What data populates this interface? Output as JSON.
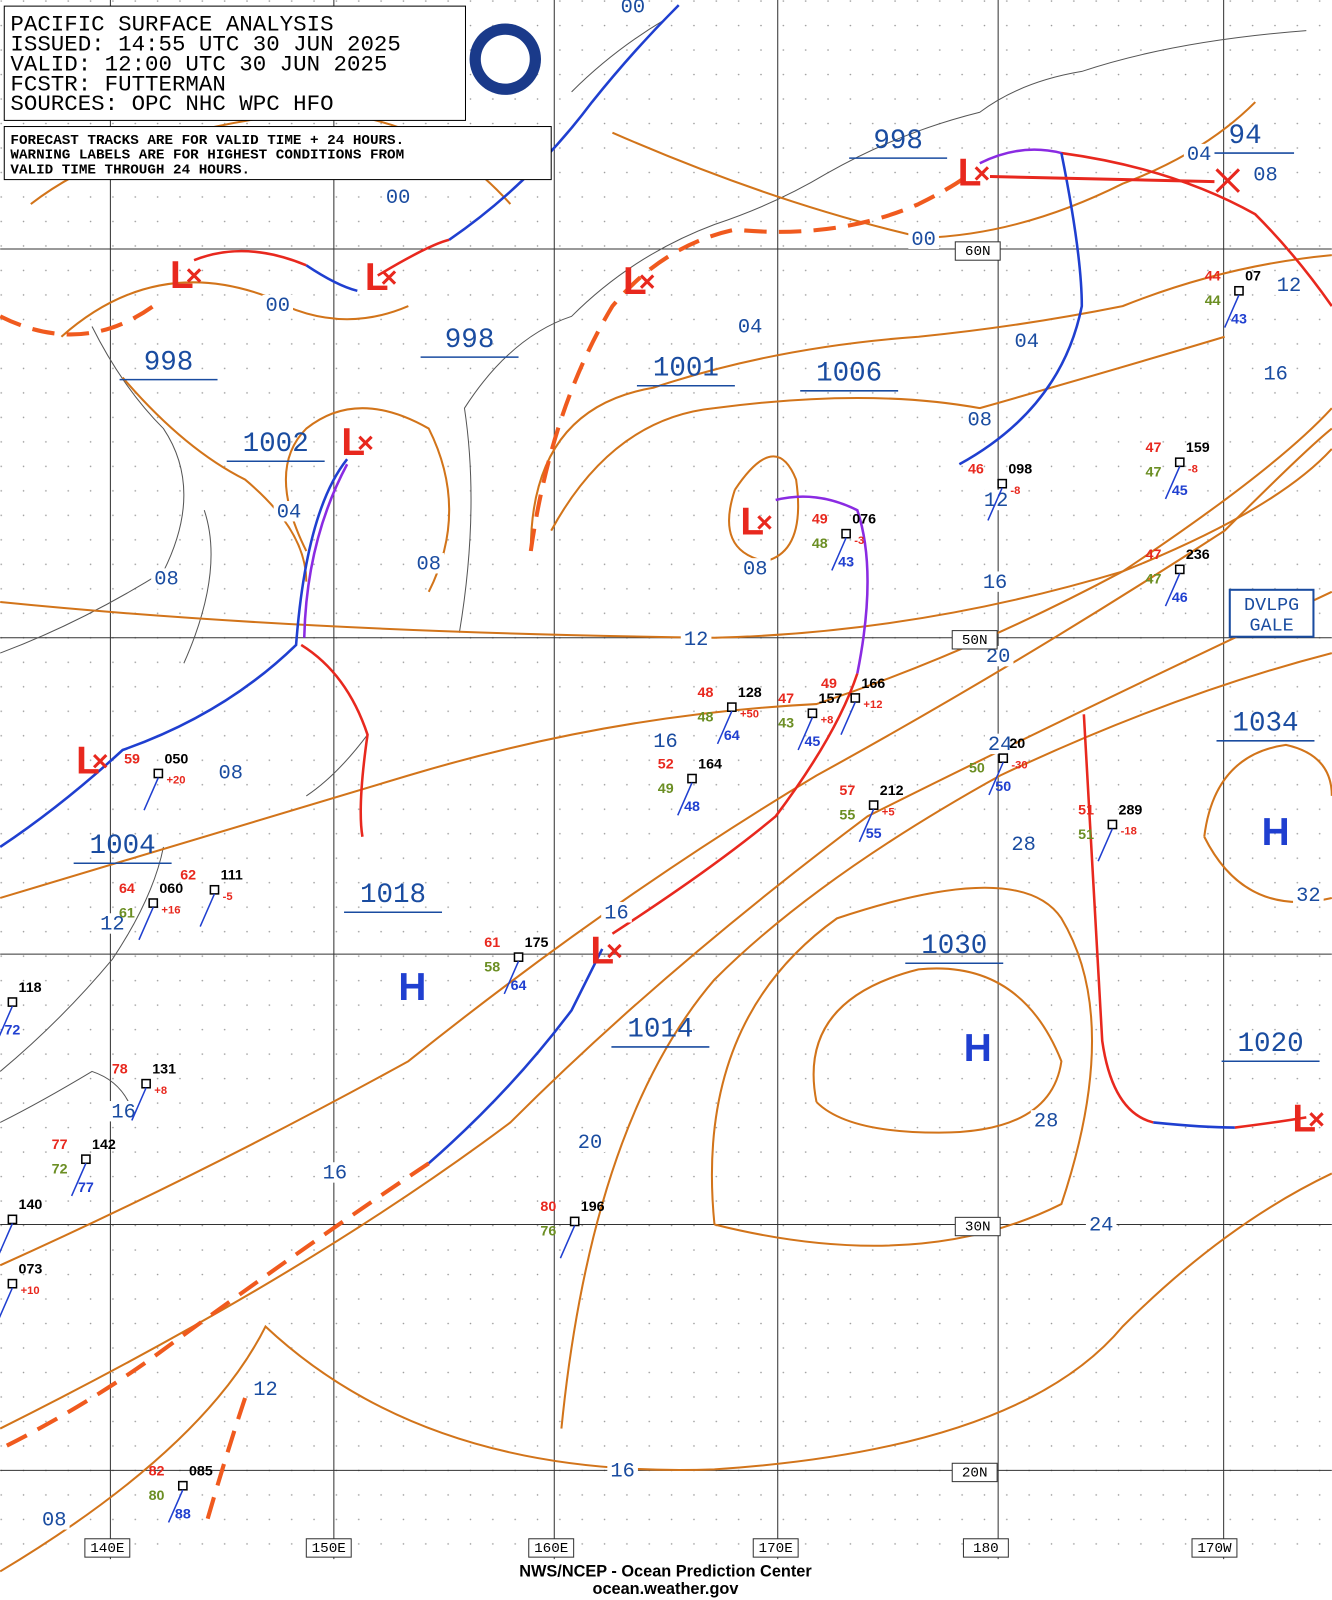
{
  "header": {
    "lines": [
      "PACIFIC SURFACE ANALYSIS",
      "ISSUED: 14:55 UTC 30 JUN 2025",
      "VALID:  12:00 UTC 30 JUN 2025",
      "FCSTR:  FUTTERMAN",
      "SOURCES: OPC NHC WPC HFO"
    ],
    "notes": [
      "FORECAST TRACKS ARE FOR VALID TIME + 24 HOURS.",
      "WARNING LABELS ARE FOR HIGHEST CONDITIONS FROM",
      "VALID TIME THROUGH 24 HOURS."
    ]
  },
  "symbols": {
    "low": "L",
    "high": "H"
  },
  "pressure_labels": [
    "998",
    "94",
    "998",
    "998",
    "1001",
    "1006",
    "1002",
    "1034",
    "1004",
    "1018",
    "1030",
    "1014",
    "1020"
  ],
  "isobar_labels": [
    "00",
    "00",
    "00",
    "00",
    "04",
    "04",
    "04",
    "08",
    "12",
    "16",
    "08",
    "12",
    "04",
    "08",
    "08",
    "08",
    "16",
    "20",
    "12",
    "16",
    "08",
    "24",
    "28",
    "32",
    "12",
    "16",
    "16",
    "20",
    "28",
    "16",
    "24",
    "12",
    "16",
    "08"
  ],
  "grid_labels": [
    "60N",
    "50N",
    "30N",
    "20N",
    "140E",
    "150E",
    "160E",
    "170E",
    "180",
    "170W"
  ],
  "warning": [
    "DVLPG",
    "GALE"
  ],
  "stations": [
    {
      "temp": "49",
      "pressure": "076",
      "tendency": "-3",
      "dew": "48",
      "sst": "43"
    },
    {
      "temp": "47",
      "pressure": "159",
      "tendency": "-8",
      "dew": "47",
      "sst": "45"
    },
    {
      "temp": "47",
      "pressure": "236",
      "dew": "47",
      "sst": "46"
    },
    {
      "temp": "44",
      "pressure": "07",
      "dew": "44",
      "sst": "43"
    },
    {
      "temp": "46",
      "pressure": "098",
      "tendency": "-8"
    },
    {
      "temp": "48",
      "pressure": "128",
      "tendency": "+50",
      "dew": "48",
      "sst": "64"
    },
    {
      "temp": "47",
      "pressure": "157",
      "tendency": "+8",
      "dew": "43",
      "sst": "45"
    },
    {
      "temp": "49",
      "pressure": "166",
      "tendency": "+12"
    },
    {
      "temp": "52",
      "pressure": "164",
      "dew": "49",
      "sst": "48"
    },
    {
      "temp": "57",
      "pressure": "212",
      "tendency": "+5",
      "dew": "55",
      "sst": "55"
    },
    {
      "pressure": "20",
      "tendency": "-30",
      "dew": "50",
      "sst": "50"
    },
    {
      "temp": "51",
      "pressure": "289",
      "tendency": "-18",
      "dew": "51"
    },
    {
      "temp": "59",
      "pressure": "050",
      "tendency": "+20"
    },
    {
      "temp": "64",
      "pressure": "060",
      "tendency": "+16",
      "dew": "61"
    },
    {
      "temp": "62",
      "pressure": "111",
      "tendency": "-5"
    },
    {
      "temp": "61",
      "pressure": "175",
      "dew": "58",
      "sst": "64"
    },
    {
      "temp": "78",
      "pressure": "131",
      "tendency": "+8"
    },
    {
      "temp": "77",
      "pressure": "142",
      "dew": "72",
      "sst": "77"
    },
    {
      "temp": "80",
      "pressure": "196",
      "dew": "76"
    },
    {
      "temp": "82",
      "pressure": "085",
      "dew": "80",
      "sst": "88"
    },
    {
      "pressure": "118",
      "sst": "72"
    },
    {
      "pressure": "140"
    },
    {
      "pressure": "073",
      "tendency": "+10"
    }
  ],
  "footer": [
    "NWS/NCEP - Ocean Prediction Center",
    "ocean.weather.gov"
  ]
}
